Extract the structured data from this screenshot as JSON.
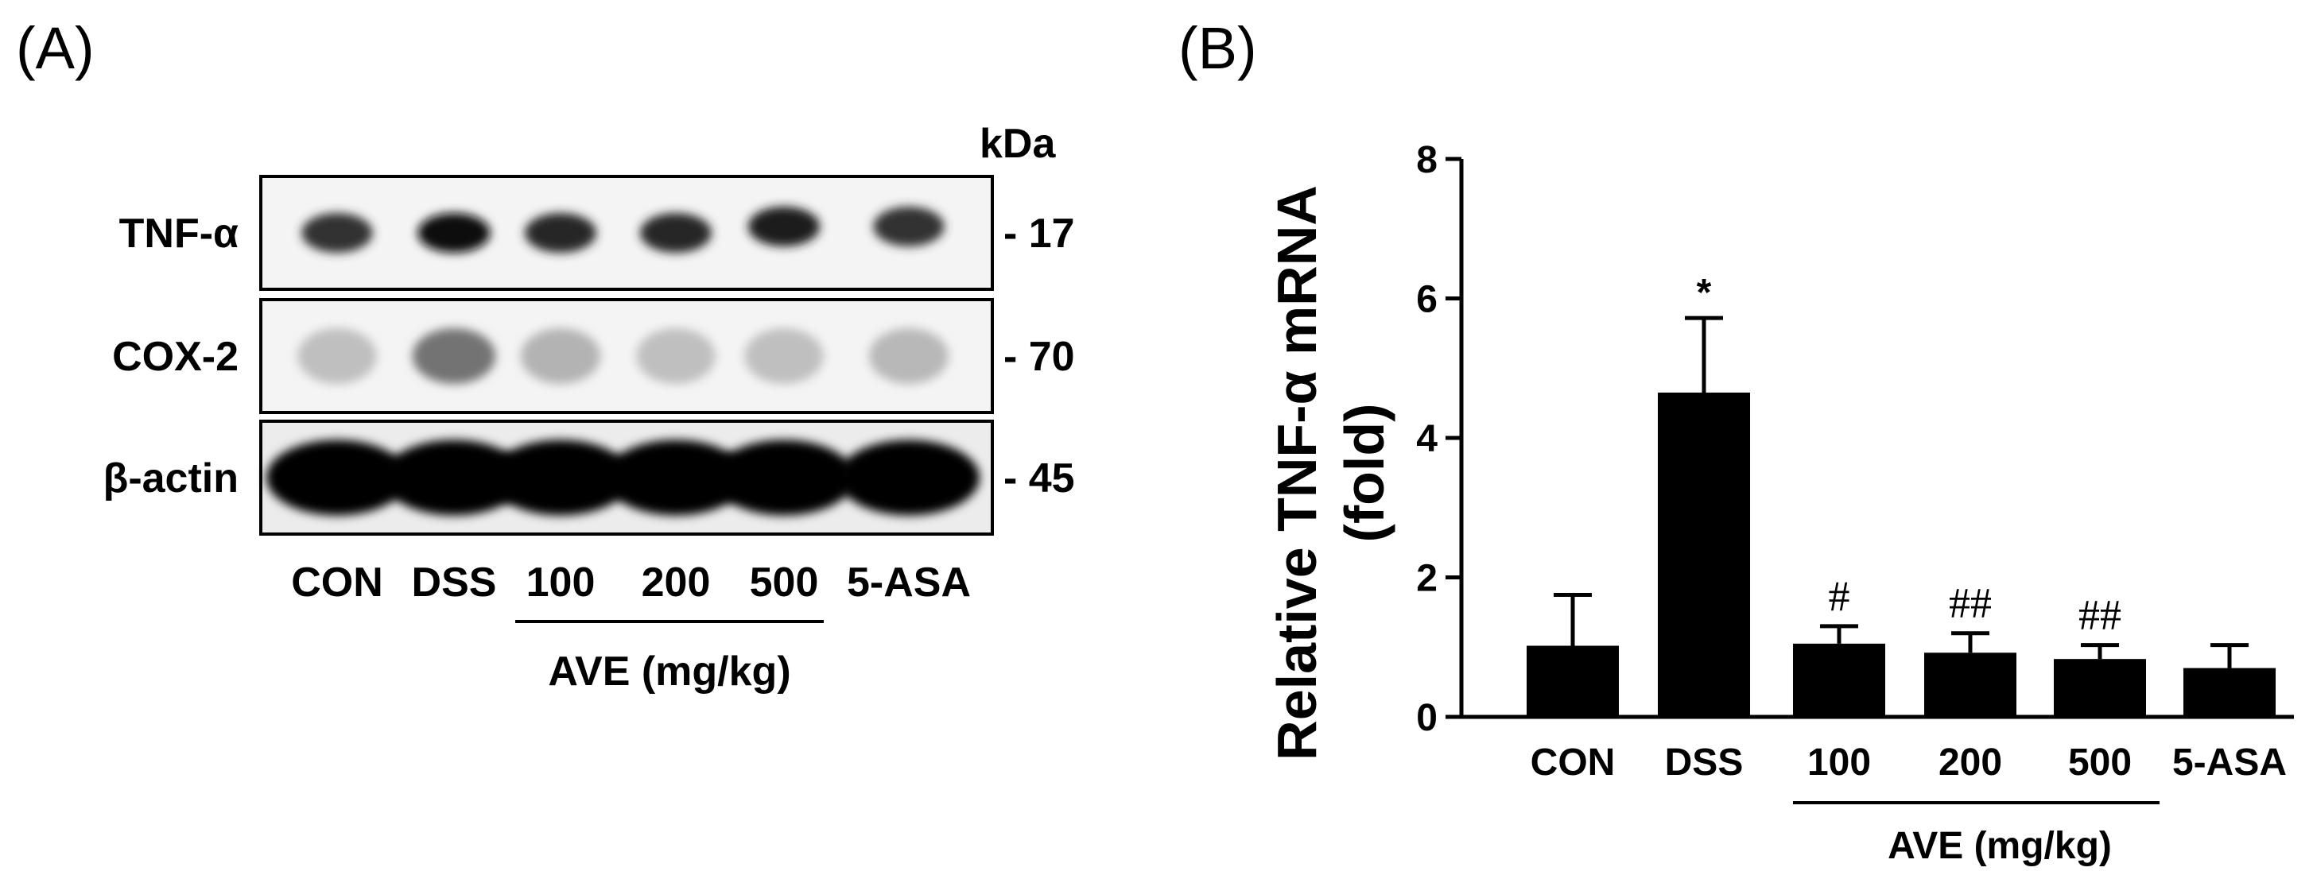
{
  "panel_a": {
    "label": "(A)",
    "kda_label": "kDa",
    "blots": [
      {
        "protein": "TNF-α",
        "kda": "- 17",
        "intensities": [
          0.8,
          0.95,
          0.85,
          0.85,
          0.88,
          0.8
        ]
      },
      {
        "protein": "COX-2",
        "kda": "- 70",
        "intensities": [
          0.25,
          0.55,
          0.3,
          0.25,
          0.25,
          0.28
        ]
      },
      {
        "protein": "β-actin",
        "kda": "- 45",
        "intensities": [
          1.0,
          1.0,
          1.0,
          1.0,
          1.0,
          1.0
        ]
      }
    ],
    "lanes": [
      "CON",
      "DSS",
      "100",
      "200",
      "500",
      "5-ASA"
    ],
    "group_label": "AVE (mg/kg)"
  },
  "panel_b": {
    "label": "(B)"
  },
  "chart_data": {
    "type": "bar",
    "categories": [
      "CON",
      "DSS",
      "100",
      "200",
      "500",
      "5-ASA"
    ],
    "values": [
      1.02,
      4.65,
      1.05,
      0.92,
      0.83,
      0.7
    ],
    "errors": [
      0.73,
      1.07,
      0.25,
      0.28,
      0.2,
      0.33
    ],
    "annotations": [
      "",
      "*",
      "#",
      "##",
      "##",
      ""
    ],
    "ylabel_line1": "Relative TNF-α  mRNA",
    "ylabel_line2": "(fold)",
    "xlabel": "",
    "group_label": "AVE (mg/kg)",
    "yticks": [
      "0",
      "2",
      "4",
      "6",
      "8"
    ],
    "ylim": [
      0,
      8
    ],
    "bar_color": "#000000"
  }
}
